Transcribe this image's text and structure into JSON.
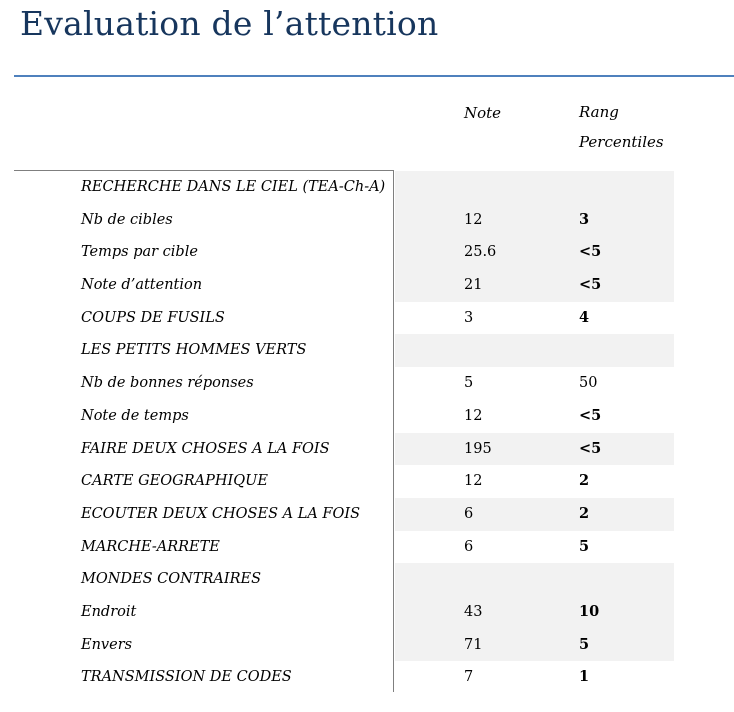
{
  "title": "Evaluation de l’attention",
  "table": {
    "col_note": "Note",
    "col_rang_line1": "Rang",
    "col_rang_line2": "Percentiles",
    "rows": [
      {
        "label": "RECHERCHE DANS LE CIEL (TEA-Ch-A)",
        "note": "",
        "rang": "",
        "bold": false,
        "shaded": true
      },
      {
        "label": "Nb de cibles",
        "note": "12",
        "rang": "3",
        "bold": true,
        "shaded": true
      },
      {
        "label": "Temps par cible",
        "note": "25.6",
        "rang": "<5",
        "bold": true,
        "shaded": true
      },
      {
        "label": "Note d’attention",
        "note": "21",
        "rang": "<5",
        "bold": true,
        "shaded": true
      },
      {
        "label": "COUPS DE FUSILS",
        "note": "3",
        "rang": "4",
        "bold": true,
        "shaded": false
      },
      {
        "label": "LES PETITS HOMMES VERTS",
        "note": "",
        "rang": "",
        "bold": false,
        "shaded": true
      },
      {
        "label": "Nb de bonnes réponses",
        "note": "5",
        "rang": "50",
        "bold": false,
        "shaded": false
      },
      {
        "label": "Note de temps",
        "note": "12",
        "rang": "<5",
        "bold": true,
        "shaded": false
      },
      {
        "label": "FAIRE DEUX CHOSES A LA FOIS",
        "note": "195",
        "rang": "<5",
        "bold": true,
        "shaded": true
      },
      {
        "label": "CARTE GEOGRAPHIQUE",
        "note": "12",
        "rang": "2",
        "bold": true,
        "shaded": false
      },
      {
        "label": "ECOUTER DEUX CHOSES A LA FOIS",
        "note": "6",
        "rang": "2",
        "bold": true,
        "shaded": true
      },
      {
        "label": "MARCHE-ARRETE",
        "note": "6",
        "rang": "5",
        "bold": true,
        "shaded": false
      },
      {
        "label": "MONDES CONTRAIRES",
        "note": "",
        "rang": "",
        "bold": false,
        "shaded": true
      },
      {
        "label": "Endroit",
        "note": "43",
        "rang": "10",
        "bold": true,
        "shaded": true
      },
      {
        "label": "Envers",
        "note": "71",
        "rang": "5",
        "bold": true,
        "shaded": true
      },
      {
        "label": "TRANSMISSION DE CODES",
        "note": "7",
        "rang": "1",
        "bold": true,
        "shaded": false
      }
    ]
  }
}
